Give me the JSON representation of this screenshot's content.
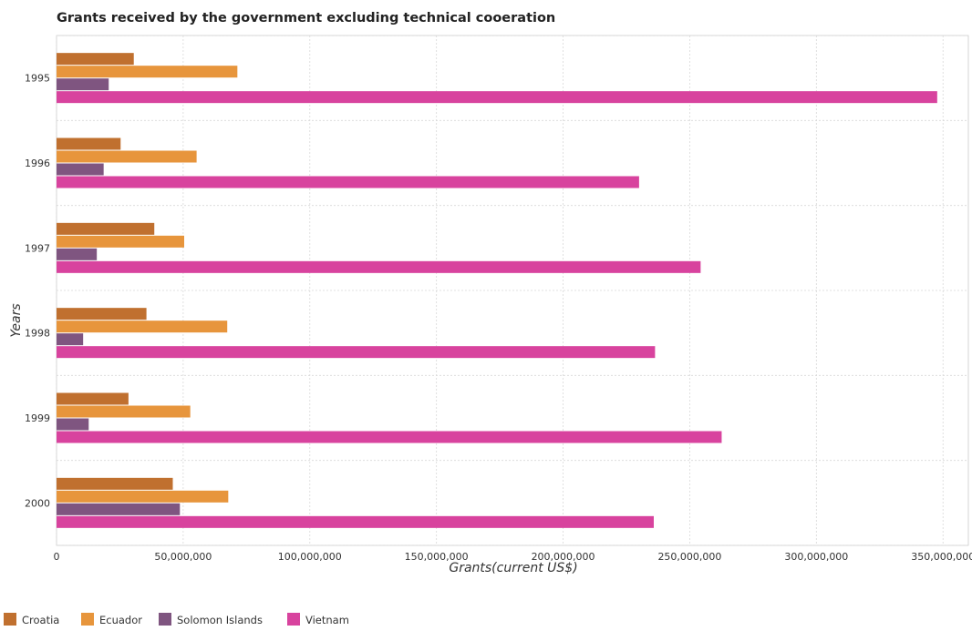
{
  "title": "Grants received by the government excluding technical cooeration",
  "chart_data": {
    "type": "bar",
    "orientation": "horizontal",
    "title": "Grants received by the government excluding technical cooeration",
    "xlabel": "Grants(current US$)",
    "ylabel": "Years",
    "categories": [
      "1995",
      "1996",
      "1997",
      "1998",
      "1999",
      "2000"
    ],
    "xlim": [
      0,
      360000000
    ],
    "xticks": [
      0,
      50000000,
      100000000,
      150000000,
      200000000,
      250000000,
      300000000,
      350000000
    ],
    "xtick_labels": [
      "0",
      "50,000,000",
      "100,000,000",
      "150,000,000",
      "200,000,000",
      "250,000,000",
      "300,000,000",
      "350,000,000"
    ],
    "grid": true,
    "legend_position": "bottom-left",
    "series": [
      {
        "name": "Croatia",
        "color": "#c0702f",
        "values": [
          30500000,
          25300000,
          38600000,
          35500000,
          28400000,
          45900000
        ]
      },
      {
        "name": "Ecuador",
        "color": "#e7953c",
        "values": [
          71400000,
          55300000,
          50400000,
          67400000,
          52800000,
          67800000
        ]
      },
      {
        "name": "Solomon Islands",
        "color": "#7f5580",
        "values": [
          20600000,
          18600000,
          15900000,
          10500000,
          12700000,
          48700000
        ]
      },
      {
        "name": "Vietnam",
        "color": "#d8439e",
        "values": [
          347700000,
          230000000,
          254300000,
          236300000,
          262600000,
          235800000
        ]
      }
    ]
  }
}
